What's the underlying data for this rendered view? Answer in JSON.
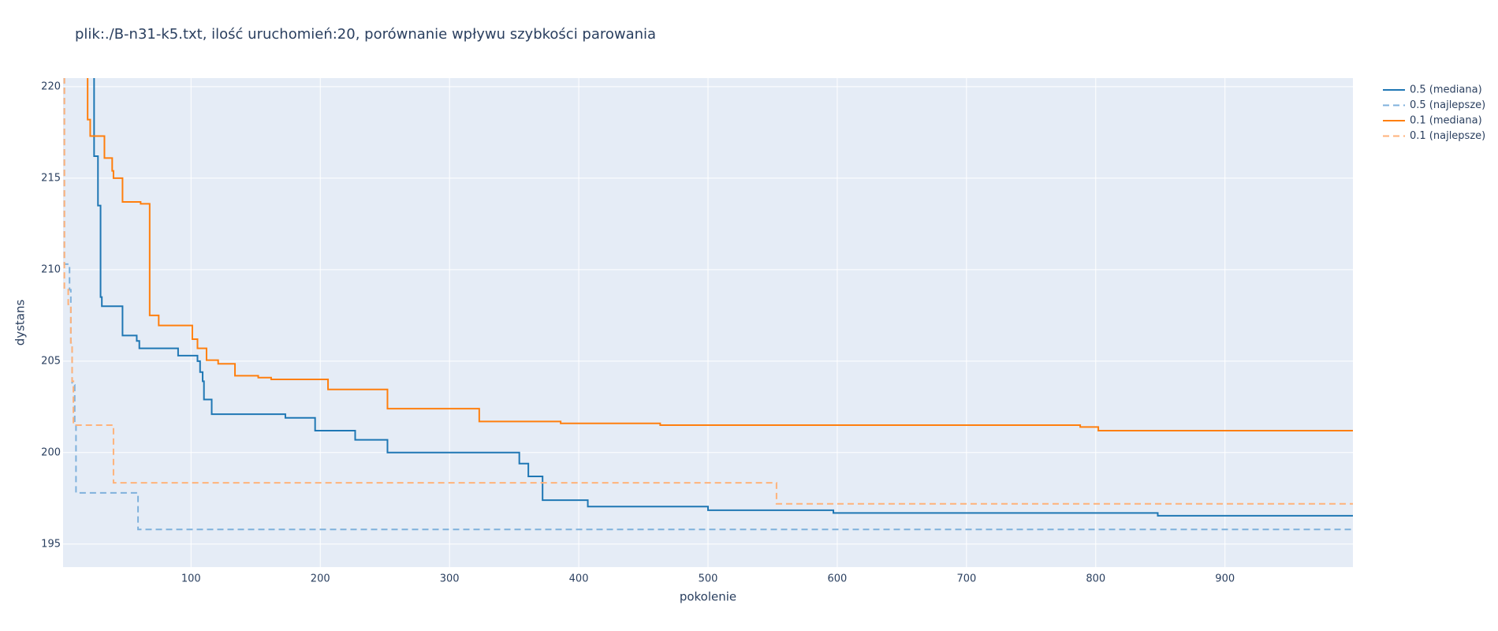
{
  "chart_data": {
    "type": "line",
    "line_shape": "hv",
    "title": "plik:./B-n31-k5.txt, ilość uruchomień:20, porównanie wpływu szybkości parowania",
    "x_label": "pokolenie",
    "y_label": "dystans",
    "xlim": [
      1,
      999
    ],
    "ylim": [
      193.74,
      220.47
    ],
    "xticks": [
      100,
      200,
      300,
      400,
      500,
      600,
      700,
      800,
      900
    ],
    "yticks": [
      195,
      200,
      205,
      210,
      215,
      220
    ],
    "grid": true,
    "legend": "right",
    "series": [
      {
        "name": "0.5 (mediana)",
        "color": "#1f77b4",
        "dash": "solid",
        "x": [
          22,
          25,
          28,
          30,
          31,
          47,
          58,
          60,
          90,
          105,
          107,
          109,
          110,
          116,
          173,
          196,
          227,
          252,
          354,
          361,
          372,
          407,
          500,
          597,
          848,
          999
        ],
        "values": [
          221,
          216.2,
          213.5,
          208.5,
          208.0,
          206.4,
          206.1,
          205.7,
          205.3,
          205.0,
          204.4,
          203.9,
          202.9,
          202.1,
          201.9,
          201.2,
          200.7,
          200.0,
          199.4,
          198.7,
          197.4,
          197.05,
          196.85,
          196.7,
          196.55,
          196.55
        ]
      },
      {
        "name": "0.5 (najlepsze)",
        "color": "#7fb1dc",
        "dash": "dashed",
        "x": [
          1,
          2,
          6,
          7,
          8,
          10,
          11,
          59,
          999
        ],
        "values": [
          221,
          210.3,
          208.9,
          206.0,
          203.7,
          201.5,
          197.8,
          195.8,
          195.8
        ]
      },
      {
        "name": "0.1 (mediana)",
        "color": "#ff7f0e",
        "dash": "solid",
        "x": [
          18,
          20,
          22,
          33,
          39,
          40,
          47,
          61,
          68,
          75,
          101,
          105,
          112,
          121,
          134,
          152,
          162,
          206,
          252,
          323,
          386,
          463,
          788,
          802,
          999
        ],
        "values": [
          221,
          218.2,
          217.3,
          216.1,
          215.4,
          215.0,
          213.7,
          213.6,
          207.5,
          206.95,
          206.2,
          205.7,
          205.05,
          204.85,
          204.2,
          204.1,
          204.0,
          203.45,
          202.4,
          201.7,
          201.6,
          201.5,
          201.4,
          201.2,
          201.2
        ]
      },
      {
        "name": "0.1 (najlepsze)",
        "color": "#ffb27a",
        "dash": "dashed",
        "x": [
          1,
          2,
          5,
          7,
          8,
          9,
          40,
          553,
          999
        ],
        "values": [
          221,
          209.0,
          208.1,
          206.0,
          203.9,
          201.5,
          198.35,
          197.2,
          197.2
        ]
      }
    ]
  }
}
